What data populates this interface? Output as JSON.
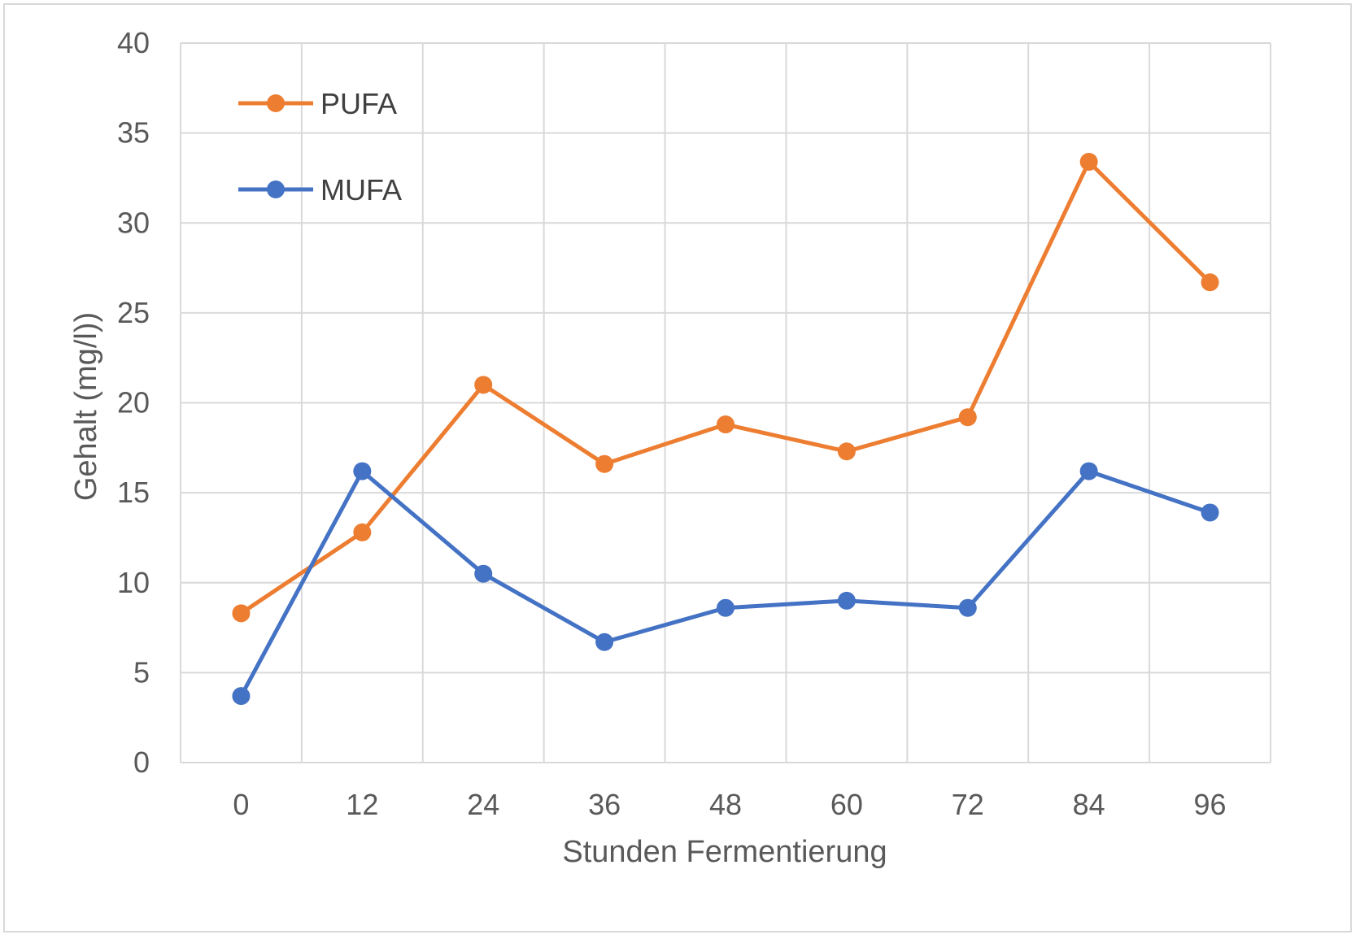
{
  "chart_data": {
    "type": "line",
    "title": "",
    "xlabel": "Stunden Fermentierung",
    "ylabel": "Gehalt (mg/l))",
    "categories": [
      "0",
      "12",
      "24",
      "36",
      "48",
      "60",
      "72",
      "84",
      "96"
    ],
    "ylim": [
      0,
      40
    ],
    "yticks": [
      0,
      5,
      10,
      15,
      20,
      25,
      30,
      35,
      40
    ],
    "grid": true,
    "legend_position": "top-left",
    "series": [
      {
        "name": "PUFA",
        "color": "#ED7D31",
        "values": [
          8.3,
          12.8,
          21.0,
          16.6,
          18.8,
          17.3,
          19.2,
          33.4,
          26.7
        ]
      },
      {
        "name": "MUFA",
        "color": "#4472C4",
        "values": [
          3.7,
          16.2,
          10.5,
          6.7,
          8.6,
          9.0,
          8.6,
          16.2,
          13.9
        ]
      }
    ]
  }
}
